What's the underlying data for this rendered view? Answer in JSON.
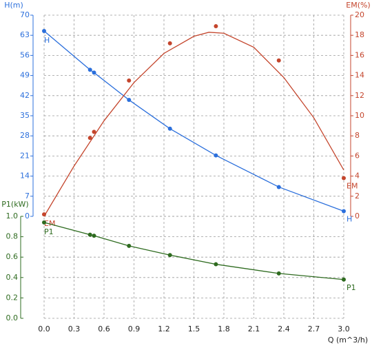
{
  "chart_data": {
    "type": "pump-curve",
    "xlabel": "Q (m^3/h)",
    "xlim": [
      0,
      3.0
    ],
    "xticks": [
      {
        "value": 0,
        "label": "0.0"
      },
      0.3,
      0.6,
      0.9,
      1.2,
      1.5,
      1.8,
      2.1,
      2.4,
      2.7,
      {
        "value": 3,
        "label": "3.0"
      }
    ],
    "ylabel": "H(m)",
    "ylim": [
      0,
      70
    ],
    "yticks": [
      0,
      7,
      14,
      21,
      28,
      35,
      42,
      49,
      56,
      63,
      70
    ],
    "y2label": "EM(%)",
    "y2lim": [
      0,
      20
    ],
    "y2ticks": [
      0,
      2,
      4,
      6,
      8,
      10,
      12,
      14,
      16,
      18,
      20
    ],
    "y3label": "P1(kW)",
    "y3lim": [
      0,
      1
    ],
    "y3ticks": [
      {
        "value": 0,
        "label": "0.0"
      },
      0.2,
      0.4,
      0.6,
      0.8,
      {
        "value": 1,
        "label": "1.0"
      }
    ],
    "grid": true,
    "x": [
      0,
      0.46,
      0.5,
      0.85,
      1.26,
      1.72,
      2.35,
      3.0
    ],
    "series": [
      {
        "name": "H",
        "color": "#2b6fdc",
        "axis": "y",
        "values": [
          64.5,
          51,
          50,
          40.5,
          30.5,
          21.2,
          10.2,
          1.8
        ]
      },
      {
        "name": "EM",
        "color": "#c4452c",
        "axis": "y2",
        "values": [
          0.2,
          7.8,
          8.4,
          13.5,
          17.2,
          18.9,
          15.5,
          3.8
        ],
        "fit_x": [
          0,
          0.3,
          0.6,
          0.9,
          1.2,
          1.5,
          1.65,
          1.8,
          2.1,
          2.4,
          2.7,
          3.0
        ],
        "fit_values": [
          0,
          5,
          9.5,
          13.3,
          16.2,
          17.9,
          18.3,
          18.2,
          16.8,
          13.8,
          9.8,
          4.6
        ]
      },
      {
        "name": "P1",
        "color": "#2e6b1f",
        "axis": "y3",
        "values": [
          0.94,
          0.82,
          0.81,
          0.71,
          0.62,
          0.53,
          0.44,
          0.38
        ]
      }
    ]
  }
}
